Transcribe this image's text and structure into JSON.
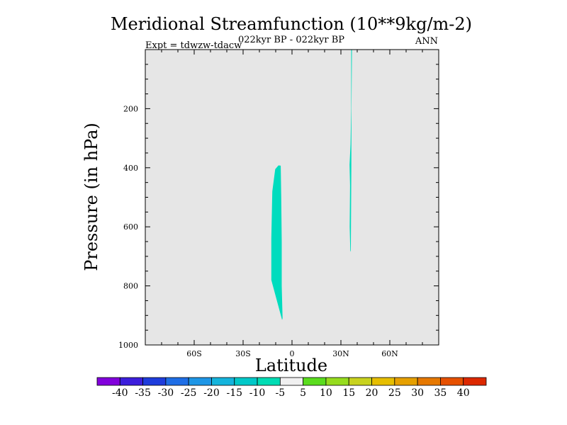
{
  "chart_data": {
    "type": "contour",
    "title": "Meridional Streamfunction (10**9kg/m-2)",
    "subtitle": "022kyr BP - 022kyr BP",
    "left_label": "Expt = tdwzw-tdacw",
    "right_label": "ANN",
    "xlabel": "Latitude",
    "ylabel": "Pressure (in hPa)",
    "xlim": [
      -90,
      90
    ],
    "ylim": [
      1000,
      0
    ],
    "x_ticks": [
      {
        "value": -60,
        "label": "60S"
      },
      {
        "value": -30,
        "label": "30S"
      },
      {
        "value": 0,
        "label": "0"
      },
      {
        "value": 30,
        "label": "30N"
      },
      {
        "value": 60,
        "label": "60N"
      }
    ],
    "y_ticks": [
      {
        "value": 200,
        "label": "200"
      },
      {
        "value": 400,
        "label": "400"
      },
      {
        "value": 600,
        "label": "600"
      },
      {
        "value": 800,
        "label": "800"
      },
      {
        "value": 1000,
        "label": "1000"
      }
    ],
    "background_fill": "#e6e6e6",
    "regions": [
      {
        "value_range": "-10 to -5",
        "color": "#00dcbe",
        "polygon": [
          [
            -8.3,
            392
          ],
          [
            -6.9,
            393
          ],
          [
            -6.6,
            500
          ],
          [
            -6.3,
            650
          ],
          [
            -6.3,
            800
          ],
          [
            -5.8,
            910
          ],
          [
            -6.1,
            915
          ],
          [
            -12.7,
            780
          ],
          [
            -12.7,
            640
          ],
          [
            -12.1,
            480
          ],
          [
            -10.3,
            405
          ]
        ]
      },
      {
        "value_range": "-10 to -5",
        "color": "#00dcbe",
        "polygon": [
          [
            36.3,
            0
          ],
          [
            36.8,
            0
          ],
          [
            36.5,
            200
          ],
          [
            36.4,
            400
          ],
          [
            36.1,
            680
          ],
          [
            35.8,
            685
          ],
          [
            35.4,
            600
          ],
          [
            35.6,
            460
          ],
          [
            35.3,
            390
          ],
          [
            35.9,
            320
          ],
          [
            36.3,
            200
          ]
        ]
      }
    ],
    "colorbar": {
      "labels": [
        "-40",
        "-35",
        "-30",
        "-25",
        "-20",
        "-15",
        "-10",
        "-5",
        "5",
        "10",
        "15",
        "20",
        "25",
        "30",
        "35",
        "40"
      ],
      "colors": [
        "#8200dc",
        "#3c1edc",
        "#1e3cdc",
        "#1e6ee6",
        "#1e96e6",
        "#14b4dc",
        "#00c8c8",
        "#00dcb4",
        "#f0f0f0",
        "#5adc1e",
        "#96dc1e",
        "#c8d21e",
        "#e6be00",
        "#e6a000",
        "#e67800",
        "#e65000",
        "#dc2800"
      ]
    }
  }
}
